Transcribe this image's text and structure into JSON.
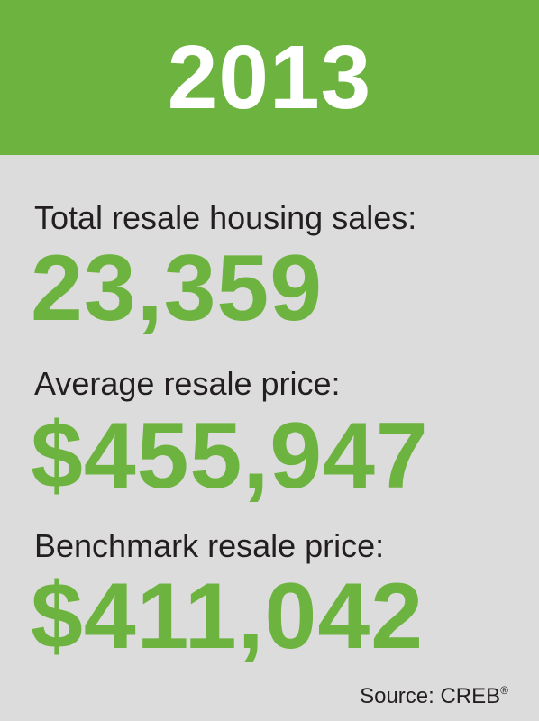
{
  "header": {
    "year": "2013"
  },
  "stats": [
    {
      "label": "Total resale housing sales:",
      "value": "23,359"
    },
    {
      "label": "Average resale price:",
      "value": "$455,947"
    },
    {
      "label": "Benchmark resale price:",
      "value": "$411,042"
    }
  ],
  "source": {
    "text": "Source: CREB",
    "mark": "®"
  },
  "colors": {
    "accent_green": "#6db33f",
    "background_gray": "#dcdcdc",
    "text_dark": "#231f20",
    "year_text": "#ffffff"
  }
}
